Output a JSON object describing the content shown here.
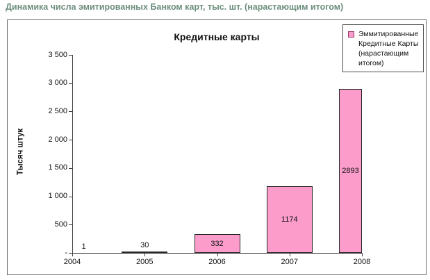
{
  "page": {
    "title": "Динамика числа эмитированных Банком карт, тыс. шт. (нарастающим итогом)",
    "title_color": "#6b8e7c"
  },
  "chart_data": {
    "type": "bar",
    "title": "Кредитные карты",
    "categories": [
      "2004",
      "2005",
      "2006",
      "2007",
      "2008"
    ],
    "values": [
      1,
      30,
      332,
      1174,
      2893
    ],
    "value_labels": [
      "1",
      "30",
      "332",
      "1174",
      "2893"
    ],
    "series_name": "Эммитированные Кредитные Карты (нарастающим итогом)",
    "xlabel": "",
    "ylabel": "Тысяч штук",
    "ylim": [
      0,
      3500
    ],
    "ytick_step": 500,
    "ytick_labels": [
      "-",
      "500",
      "1 000",
      "1 500",
      "2 000",
      "2 500",
      "3 000",
      "3 500"
    ],
    "grid": false,
    "legend_position": "top-right",
    "colors": {
      "bar_fill": "#fc9ccb",
      "bar_border": "#262626",
      "legend_marker_fill": "#fc9ccb",
      "legend_marker_border": "#993366",
      "axis": "#3f3f3f",
      "text": "#111111"
    }
  }
}
